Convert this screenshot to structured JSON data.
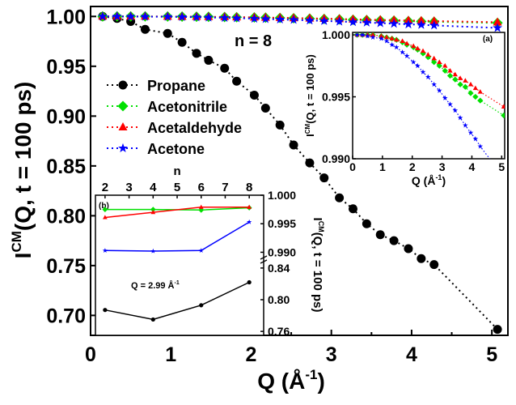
{
  "chart_data": [
    {
      "panel": "main",
      "type": "scatter",
      "annotation": "n = 8",
      "xlabel": "Q (Å",
      "xlabel_sup": "-1",
      "xlabel_end": ")",
      "ylabel": "I",
      "ylabel_sup": "CM",
      "ylabel_end": "(Q, t = 100 ps)",
      "xlim": [
        0,
        5.2
      ],
      "ylim": [
        0.68,
        1.01
      ],
      "x_ticks": [
        "0",
        "1",
        "2",
        "3",
        "4",
        "5"
      ],
      "y_ticks": [
        "0.70",
        "0.75",
        "0.80",
        "0.85",
        "0.90",
        "0.95",
        "1.00"
      ],
      "legend_position": "left",
      "series": [
        {
          "name": "Propane",
          "color": "#000000",
          "marker": "circle",
          "x": [
            0.15,
            0.33,
            0.5,
            0.68,
            0.96,
            1.14,
            1.32,
            1.47,
            1.67,
            1.82,
            2.04,
            2.18,
            2.36,
            2.53,
            2.73,
            2.91,
            3.1,
            3.27,
            3.44,
            3.61,
            3.78,
            3.96,
            4.12,
            4.28,
            5.07
          ],
          "y": [
            1.0,
            0.998,
            0.995,
            0.987,
            0.983,
            0.974,
            0.963,
            0.956,
            0.948,
            0.935,
            0.921,
            0.908,
            0.891,
            0.871,
            0.853,
            0.838,
            0.818,
            0.807,
            0.792,
            0.781,
            0.775,
            0.767,
            0.757,
            0.751,
            0.686
          ]
        },
        {
          "name": "Acetonitrile",
          "color": "#00e000",
          "marker": "diamond",
          "x": [
            0.15,
            0.33,
            0.5,
            0.68,
            0.96,
            1.14,
            1.32,
            1.47,
            1.67,
            1.82,
            2.04,
            2.18,
            2.36,
            2.53,
            2.73,
            2.91,
            3.1,
            3.27,
            3.44,
            3.61,
            3.78,
            3.96,
            4.12,
            4.28,
            5.07
          ],
          "y": [
            1.0,
            1.0,
            1.0,
            1.0,
            0.9999,
            0.9998,
            0.9997,
            0.9996,
            0.9994,
            0.9992,
            0.999,
            0.9988,
            0.9985,
            0.9982,
            0.9978,
            0.9975,
            0.9971,
            0.9967,
            0.9964,
            0.996,
            0.9958,
            0.9953,
            0.995,
            0.9947,
            0.9935
          ]
        },
        {
          "name": "Acetaldehyde",
          "color": "#ff0000",
          "marker": "triangle",
          "x": [
            0.15,
            0.33,
            0.5,
            0.68,
            0.96,
            1.14,
            1.32,
            1.47,
            1.67,
            1.82,
            2.04,
            2.18,
            2.36,
            2.53,
            2.73,
            2.91,
            3.1,
            3.27,
            3.44,
            3.61,
            3.78,
            3.96,
            4.12,
            4.28,
            5.07
          ],
          "y": [
            1.0,
            1.0,
            1.0,
            1.0,
            0.9999,
            0.9998,
            0.9997,
            0.9996,
            0.9995,
            0.9993,
            0.9991,
            0.9989,
            0.9987,
            0.9984,
            0.9981,
            0.9978,
            0.9975,
            0.9971,
            0.9968,
            0.9965,
            0.9963,
            0.996,
            0.9957,
            0.9954,
            0.9942
          ]
        },
        {
          "name": "Acetone",
          "color": "#0000ff",
          "marker": "star",
          "x": [
            0.15,
            0.33,
            0.5,
            0.68,
            0.96,
            1.14,
            1.32,
            1.47,
            1.67,
            1.82,
            2.04,
            2.18,
            2.36,
            2.53,
            2.73,
            2.91,
            3.1,
            3.27,
            3.44,
            3.61,
            3.78,
            3.96,
            4.12,
            4.28,
            5.07
          ],
          "y": [
            1.0,
            1.0,
            0.9999,
            0.9998,
            0.9997,
            0.9995,
            0.9992,
            0.999,
            0.9986,
            0.9983,
            0.9978,
            0.9975,
            0.997,
            0.9966,
            0.996,
            0.9955,
            0.9949,
            0.9944,
            0.9939,
            0.9933,
            0.9927,
            0.9921,
            0.9916,
            0.991,
            0.9885
          ]
        }
      ]
    },
    {
      "panel": "inset-a",
      "type": "scatter",
      "tag": "(a)",
      "xlabel": "Q (Å",
      "xlabel_sup": "-1",
      "xlabel_end": ")",
      "ylabel": "I",
      "ylabel_sup": "CM",
      "ylabel_end": "(Q, t = 100 ps)",
      "xlim": [
        0,
        5.1
      ],
      "ylim": [
        0.99,
        1.0002
      ],
      "x_ticks": [
        "0",
        "1",
        "2",
        "3",
        "4",
        "5"
      ],
      "y_ticks": [
        "0.990",
        "0.995",
        "1.000"
      ],
      "series_ref": [
        "Acetonitrile",
        "Acetaldehyde",
        "Acetone"
      ]
    },
    {
      "panel": "inset-b",
      "type": "line",
      "tag": "(b)",
      "annotation": "Q = 2.99 Å",
      "annotation_sup": "-1",
      "xlabel": "n",
      "ylabel": "I",
      "ylabel_sup": "CM",
      "ylabel_end": "(Q, t = 100 ps)",
      "x_ticks": [
        "2",
        "3",
        "4",
        "5",
        "6",
        "7",
        "8"
      ],
      "x": [
        2,
        4,
        6,
        8
      ],
      "upper_ylim": [
        0.9885,
        1.0
      ],
      "upper_y_ticks": [
        "0.990",
        "0.995",
        "1.000"
      ],
      "lower_ylim": [
        0.755,
        0.845
      ],
      "lower_y_ticks": [
        "0.76",
        "0.80",
        "0.84"
      ],
      "series": [
        {
          "name": "Acetonitrile",
          "color": "#00e000",
          "axis": "upper",
          "y": [
            0.9975,
            0.9975,
            0.9974,
            0.9978
          ]
        },
        {
          "name": "Acetaldehyde",
          "color": "#ff0000",
          "axis": "upper",
          "y": [
            0.9961,
            0.997,
            0.9979,
            0.9979
          ]
        },
        {
          "name": "Acetone",
          "color": "#0000ff",
          "axis": "upper",
          "y": [
            0.9903,
            0.9902,
            0.9903,
            0.9953
          ]
        },
        {
          "name": "Propane",
          "color": "#000000",
          "axis": "lower",
          "y": [
            0.787,
            0.775,
            0.793,
            0.822
          ]
        }
      ]
    }
  ]
}
